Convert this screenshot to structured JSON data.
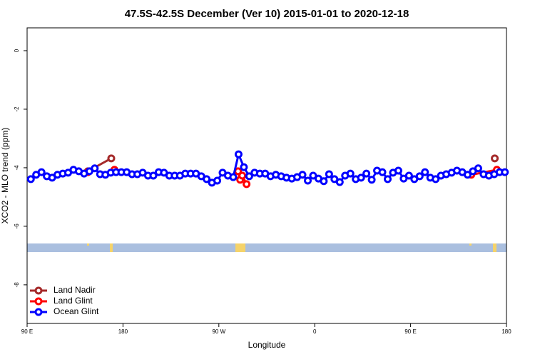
{
  "chart_data": {
    "type": "line",
    "title": "47.5S-42.5S December (Ver 10)   2015-01-01 to 2020-12-18",
    "x_label": "Longitude",
    "y_label": "XCO2 - MLO trend (ppm)",
    "xlim": [
      90,
      540
    ],
    "xticks": [
      {
        "value": 90,
        "label": "90 E"
      },
      180,
      {
        "value": 270,
        "label": "90 W"
      },
      {
        "value": 360,
        "label": "0"
      },
      {
        "value": 450,
        "label": "90 E"
      },
      {
        "value": 540,
        "label": "180"
      }
    ],
    "ylim": [
      -9.32,
      0.78
    ],
    "yticks": [
      0,
      -2,
      -4,
      -6,
      -8
    ],
    "legend": "bottomleft",
    "series": [
      {
        "name": "Land Nadir",
        "color": "#a52a2a",
        "x": [
          147,
          169,
          529
        ],
        "values": [
          -4.12,
          -3.68,
          -3.68
        ]
      },
      {
        "name": "Land Glint",
        "color": "#ff0000",
        "x": [
          147,
          172,
          288,
          290,
          292,
          296,
          507,
          531
        ],
        "values": [
          -4.15,
          -4.07,
          -4.12,
          -4.41,
          -4.27,
          -4.56,
          -4.24,
          -4.07
        ]
      },
      {
        "name": "Ocean Glint",
        "color": "#0000ff",
        "x": [
          93.5,
          98.5,
          103.5,
          108.5,
          113.5,
          118.5,
          123.5,
          128.5,
          133.5,
          138.5,
          143.5,
          148.5,
          153.5,
          158.5,
          163.5,
          168.5,
          173.5,
          178.5,
          183.5,
          188.5,
          193.5,
          198.5,
          203.5,
          208.5,
          213.5,
          218.5,
          223.5,
          228.5,
          233.5,
          238.5,
          243.5,
          248.5,
          253.5,
          258.5,
          263.5,
          268.5,
          273.5,
          278.5,
          283.5,
          288.5,
          293.5,
          298.5,
          303.5,
          308.5,
          313.5,
          318.5,
          323.5,
          328.5,
          333.5,
          338.5,
          343.5,
          348.5,
          353.5,
          358.5,
          363.5,
          368.5,
          373.5,
          378.5,
          383.5,
          388.5,
          393.5,
          398.5,
          403.5,
          408.5,
          413.5,
          418.5,
          423.5,
          428.5,
          433.5,
          438.5,
          443.5,
          448.5,
          453.5,
          458.5,
          463.5,
          468.5,
          473.5,
          478.5,
          483.5,
          488.5,
          493.5,
          498.5,
          503.5,
          508.5,
          513.5,
          518.5,
          523.5,
          528.5,
          533.5,
          538.5
        ],
        "values": [
          -4.39,
          -4.24,
          -4.15,
          -4.29,
          -4.34,
          -4.24,
          -4.2,
          -4.17,
          -4.07,
          -4.12,
          -4.2,
          -4.12,
          -4.02,
          -4.22,
          -4.24,
          -4.17,
          -4.15,
          -4.15,
          -4.15,
          -4.22,
          -4.22,
          -4.17,
          -4.27,
          -4.27,
          -4.15,
          -4.17,
          -4.27,
          -4.27,
          -4.27,
          -4.2,
          -4.2,
          -4.2,
          -4.29,
          -4.39,
          -4.51,
          -4.44,
          -4.17,
          -4.27,
          -4.32,
          -3.54,
          -3.98,
          -4.29,
          -4.17,
          -4.2,
          -4.2,
          -4.29,
          -4.24,
          -4.29,
          -4.34,
          -4.37,
          -4.32,
          -4.24,
          -4.44,
          -4.27,
          -4.37,
          -4.46,
          -4.22,
          -4.39,
          -4.49,
          -4.27,
          -4.2,
          -4.39,
          -4.34,
          -4.2,
          -4.41,
          -4.1,
          -4.15,
          -4.39,
          -4.17,
          -4.1,
          -4.37,
          -4.27,
          -4.39,
          -4.29,
          -4.15,
          -4.34,
          -4.39,
          -4.27,
          -4.22,
          -4.17,
          -4.1,
          -4.15,
          -4.24,
          -4.12,
          -4.02,
          -4.22,
          -4.27,
          -4.22,
          -4.15,
          -4.15
        ]
      }
    ]
  }
}
